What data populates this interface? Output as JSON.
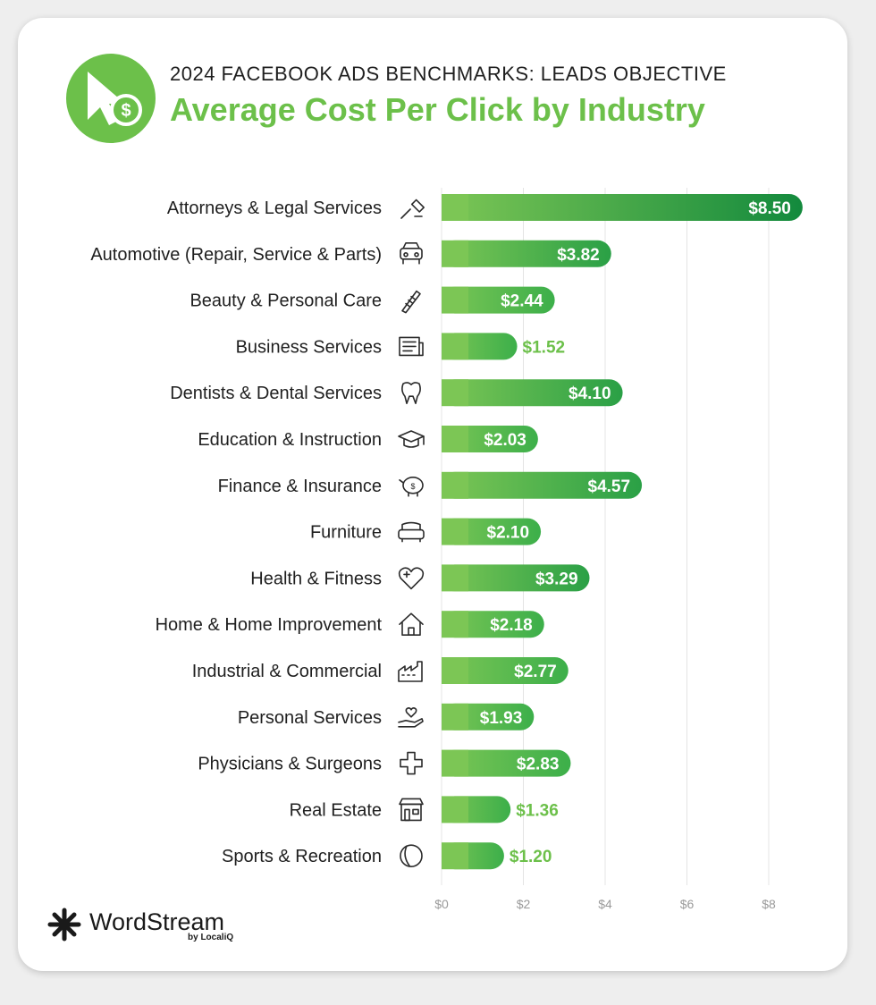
{
  "header": {
    "kicker": "2024 FACEBOOK ADS BENCHMARKS: LEADS OBJECTIVE",
    "title": "Average Cost Per Click by Industry"
  },
  "brand": {
    "name": "WordStream",
    "sub": "by LocaliQ"
  },
  "colors": {
    "accent": "#6cc04a",
    "bar_light": "#7cc655",
    "bar_dark": "#138a3d",
    "grid": "#e4e4e4"
  },
  "chart_data": {
    "type": "bar",
    "orientation": "horizontal",
    "title": "Average Cost Per Click by Industry",
    "subtitle": "2024 FACEBOOK ADS BENCHMARKS: LEADS OBJECTIVE",
    "xlabel": "",
    "ylabel": "",
    "xlim": [
      0,
      8
    ],
    "x_ticks": [
      0,
      2,
      4,
      6,
      8
    ],
    "x_tick_labels": [
      "$0",
      "$2",
      "$4",
      "$6",
      "$8"
    ],
    "grid": true,
    "categories": [
      "Attorneys & Legal Services",
      "Automotive (Repair, Service & Parts)",
      "Beauty & Personal Care",
      "Business Services",
      "Dentists & Dental Services",
      "Education & Instruction",
      "Finance & Insurance",
      "Furniture",
      "Health & Fitness",
      "Home & Home Improvement",
      "Industrial & Commercial",
      "Personal Services",
      "Physicians & Surgeons",
      "Real Estate",
      "Sports & Recreation"
    ],
    "icons": [
      "gavel-icon",
      "car-icon",
      "comb-icon",
      "newspaper-icon",
      "tooth-icon",
      "graduation-cap-icon",
      "piggy-bank-icon",
      "armchair-icon",
      "heart-plus-icon",
      "house-icon",
      "factory-icon",
      "hand-heart-icon",
      "medical-cross-icon",
      "storefront-icon",
      "ball-icon"
    ],
    "values": [
      8.5,
      3.82,
      2.44,
      1.52,
      4.1,
      2.03,
      4.57,
      2.1,
      3.29,
      2.18,
      2.77,
      1.93,
      2.83,
      1.36,
      1.2
    ],
    "labels": [
      "$8.50",
      "$3.82",
      "$2.44",
      "$1.52",
      "$4.10",
      "$2.03",
      "$4.57",
      "$2.10",
      "$3.29",
      "$2.18",
      "$2.77",
      "$1.93",
      "$2.83",
      "$1.36",
      "$1.20"
    ]
  }
}
